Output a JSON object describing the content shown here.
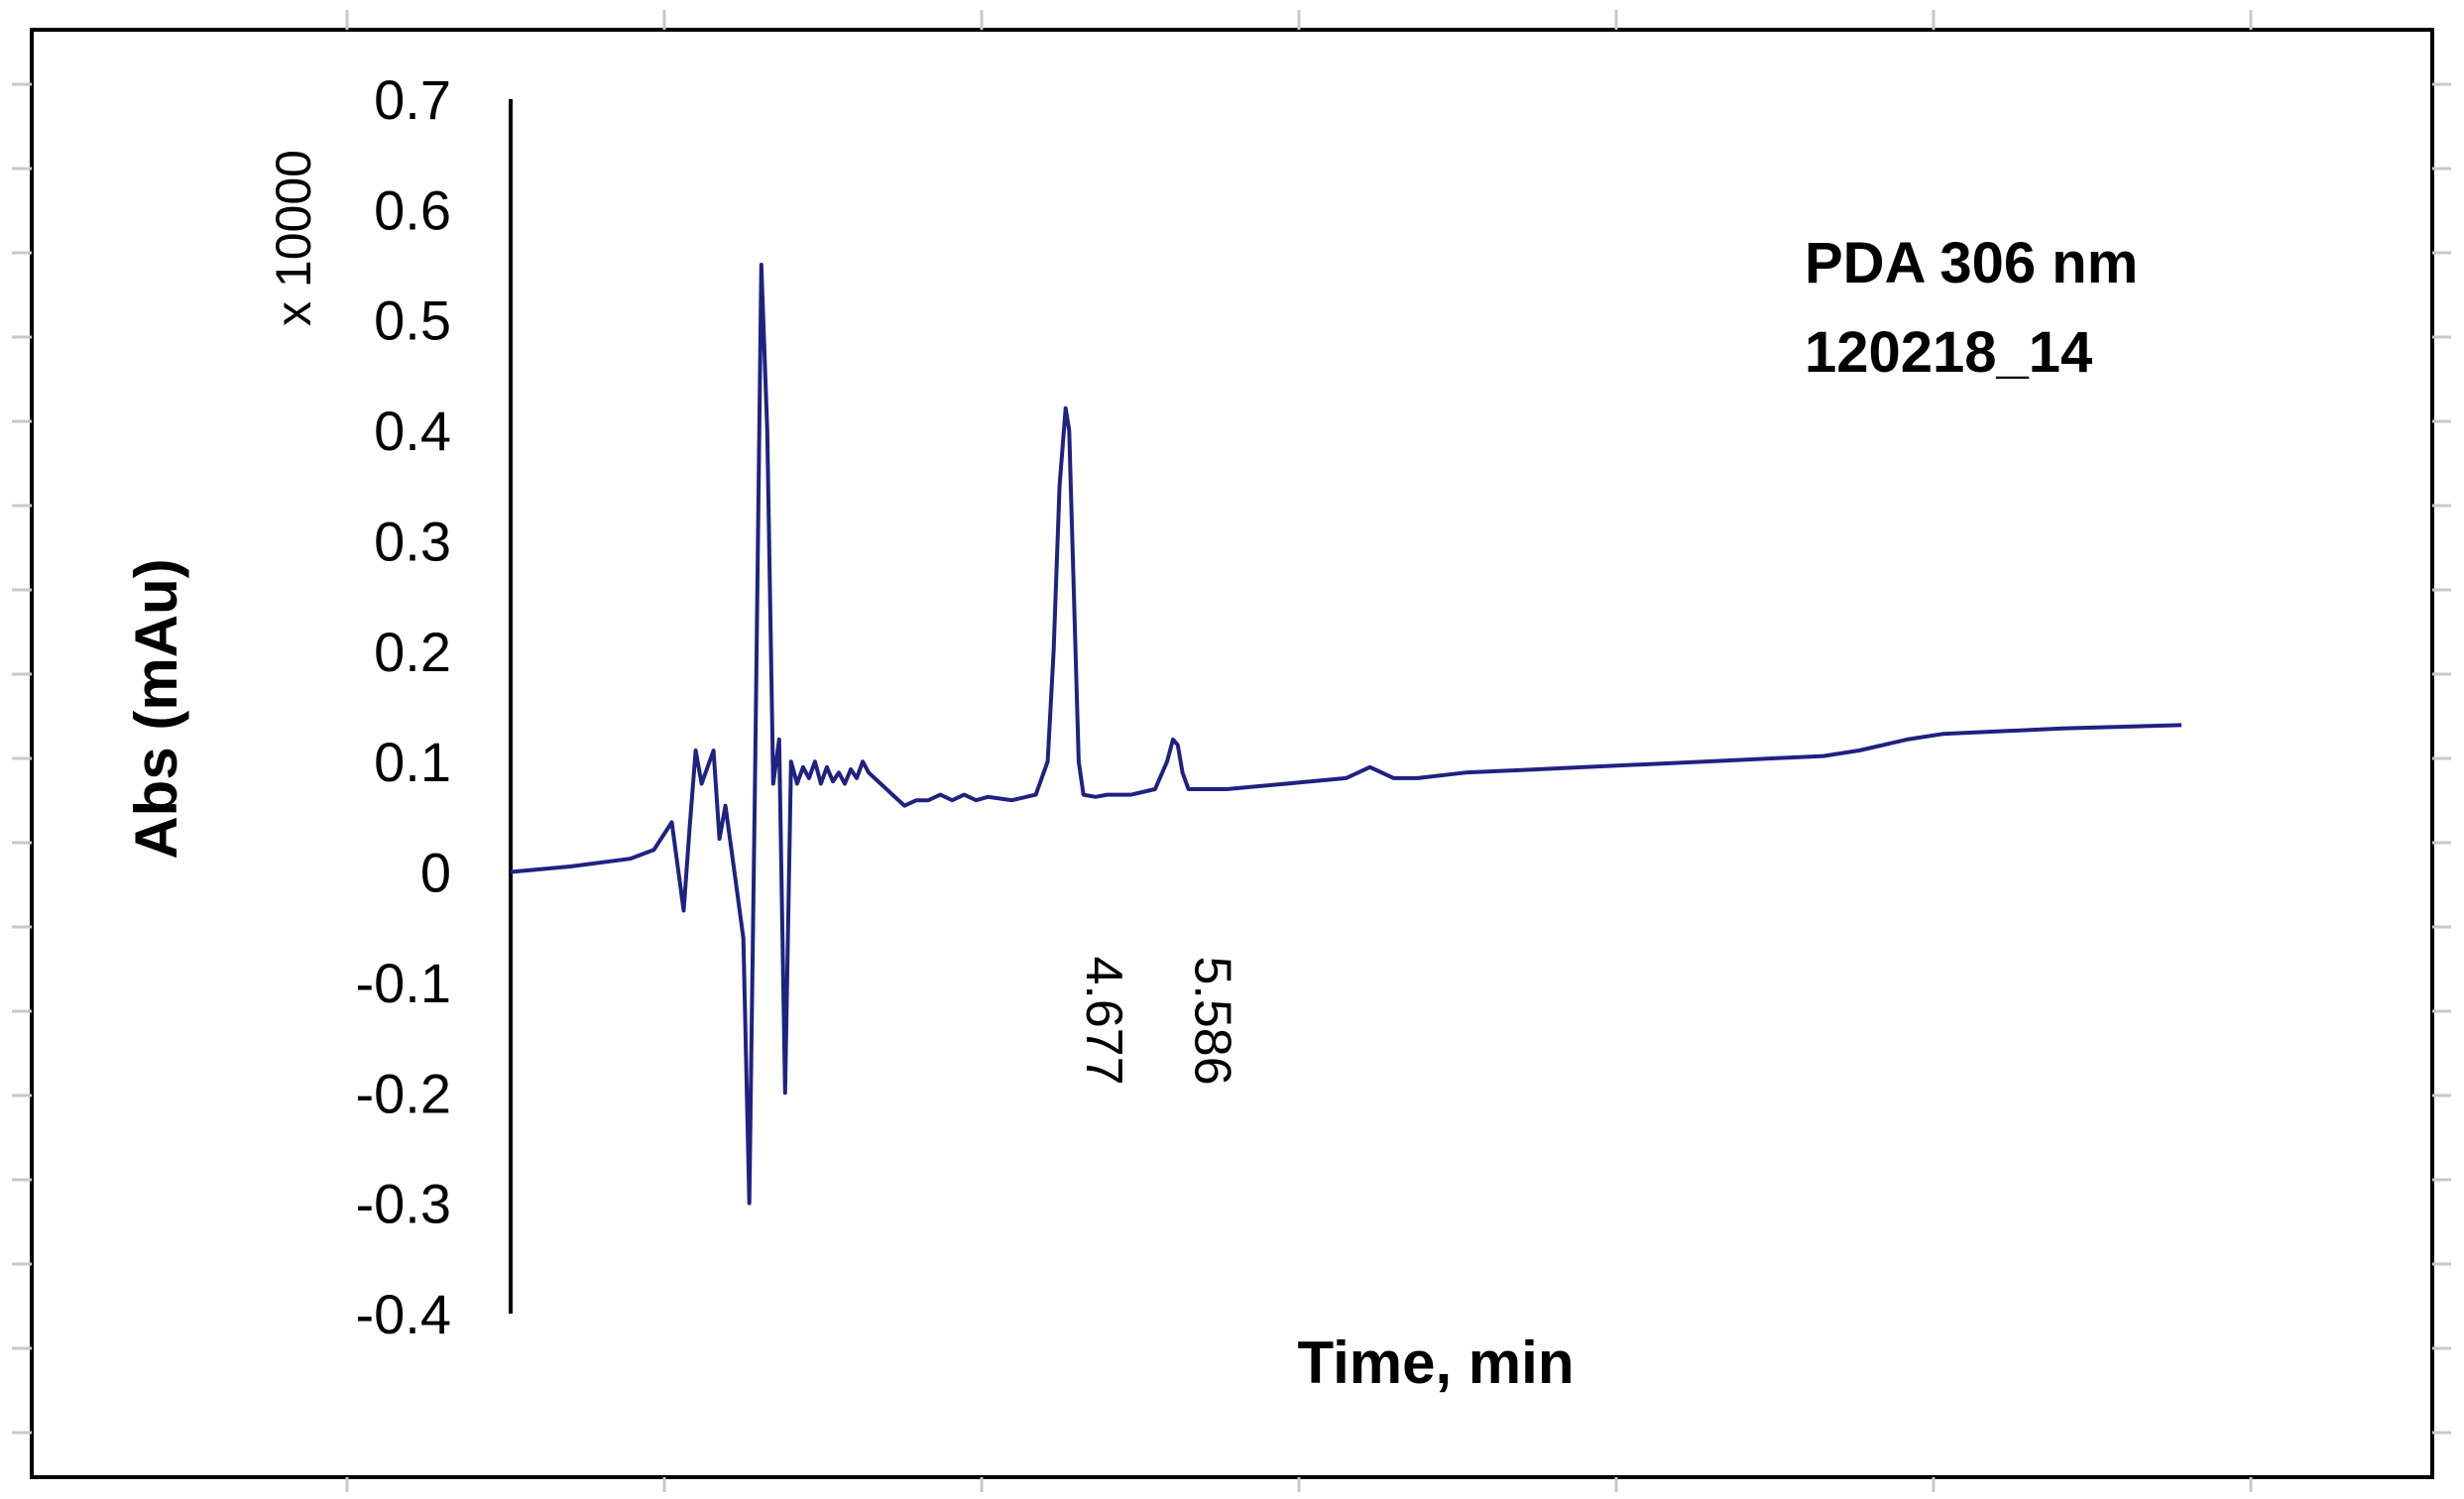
{
  "chart_data": {
    "type": "line",
    "title": "",
    "xlabel": "Time, min",
    "ylabel": "Abs (mAu)",
    "y_scale_label": "x 10000",
    "ylim": [
      -0.4,
      0.7
    ],
    "xlim": [
      0,
      14
    ],
    "grid": false,
    "yticks": [
      "0.7",
      "0.6",
      "0.5",
      "0.4",
      "0.3",
      "0.2",
      "0.1",
      "0",
      "-0.1",
      "-0.2",
      "-0.3",
      "-0.4"
    ],
    "annotations": {
      "line1": "PDA 306 nm",
      "line2": "120218_14"
    },
    "colors": {
      "trace": "#1f2280"
    },
    "peaks": [
      {
        "time": 4.677,
        "label": "4.677",
        "height": 0.42
      },
      {
        "time": 5.586,
        "label": "5.586",
        "height": 0.12
      }
    ],
    "series": [
      {
        "x": [
          0.0,
          0.5,
          1.0,
          1.2,
          1.35,
          1.45,
          1.5,
          1.55,
          1.6,
          1.7,
          1.75,
          1.8,
          1.85,
          1.9,
          1.95,
          2.0,
          2.05,
          2.1,
          2.15,
          2.2,
          2.25,
          2.3,
          2.35,
          2.4,
          2.45,
          2.5,
          2.55,
          2.6,
          2.65,
          2.7,
          2.75,
          2.8,
          2.85,
          2.9,
          2.95,
          3.0,
          3.1,
          3.2,
          3.3,
          3.4,
          3.5,
          3.6,
          3.7,
          3.8,
          3.9,
          4.0,
          4.2,
          4.4,
          4.5,
          4.55,
          4.6,
          4.65,
          4.68,
          4.72,
          4.76,
          4.8,
          4.9,
          5.0,
          5.2,
          5.4,
          5.5,
          5.55,
          5.59,
          5.63,
          5.68,
          5.8,
          6.0,
          6.5,
          7.0,
          7.2,
          7.4,
          7.6,
          8.0,
          9.0,
          10.0,
          11.0,
          11.3,
          11.5,
          11.7,
          12.0,
          13.0,
          14.0
        ],
        "y": [
          0.0,
          0.005,
          0.012,
          0.02,
          0.045,
          -0.035,
          0.04,
          0.11,
          0.08,
          0.11,
          0.03,
          0.06,
          0.02,
          -0.02,
          -0.06,
          -0.3,
          0.1,
          0.55,
          0.4,
          0.08,
          0.12,
          -0.2,
          0.1,
          0.08,
          0.095,
          0.085,
          0.1,
          0.08,
          0.095,
          0.082,
          0.09,
          0.08,
          0.093,
          0.085,
          0.1,
          0.09,
          0.08,
          0.07,
          0.06,
          0.065,
          0.065,
          0.07,
          0.065,
          0.07,
          0.065,
          0.068,
          0.065,
          0.07,
          0.1,
          0.2,
          0.35,
          0.42,
          0.4,
          0.25,
          0.1,
          0.07,
          0.068,
          0.07,
          0.07,
          0.075,
          0.1,
          0.12,
          0.115,
          0.09,
          0.075,
          0.075,
          0.075,
          0.08,
          0.085,
          0.095,
          0.085,
          0.085,
          0.09,
          0.095,
          0.1,
          0.105,
          0.11,
          0.115,
          0.12,
          0.125,
          0.13,
          0.133
        ]
      }
    ]
  }
}
